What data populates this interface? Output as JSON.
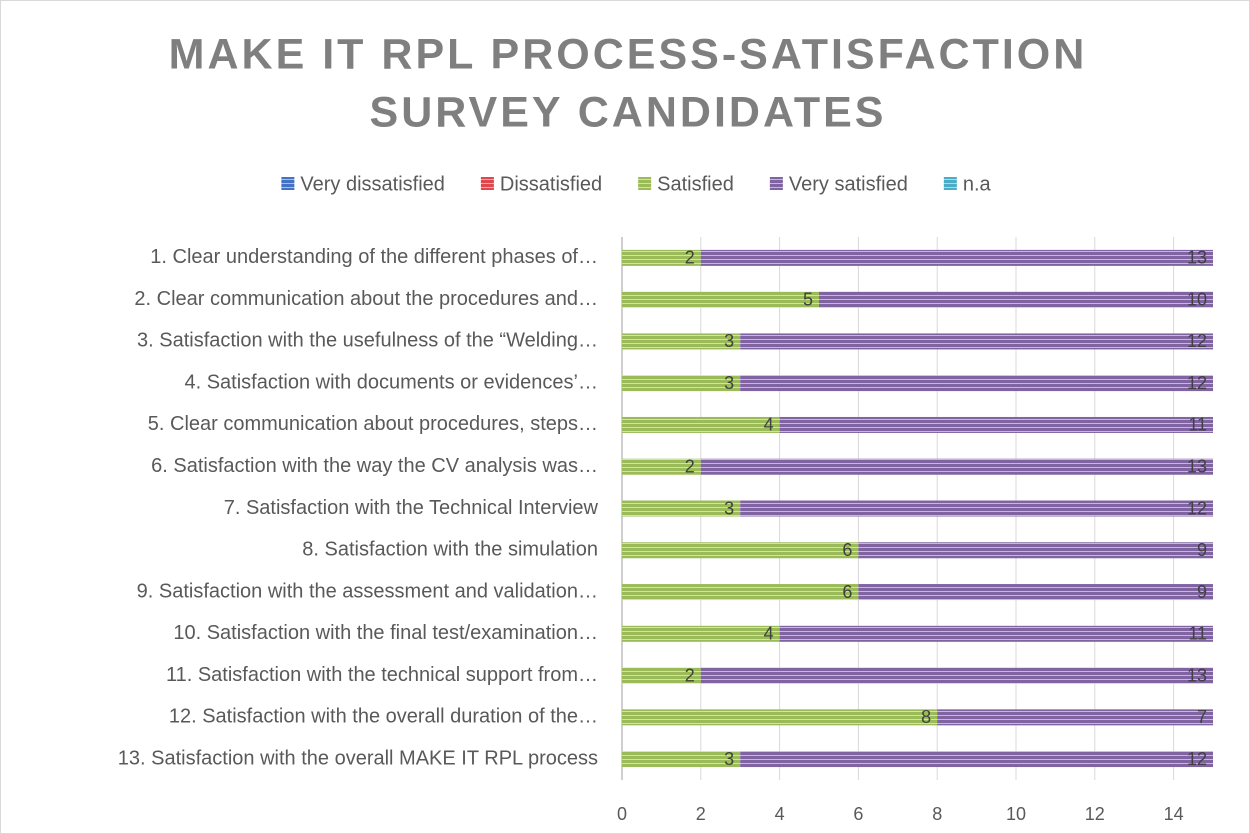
{
  "chart_data": {
    "type": "stacked_bar_horizontal",
    "title": [
      "MAKE IT RPL PROCESS-SATISFACTION",
      "SURVEY CANDIDATES"
    ],
    "categories": [
      "1. Clear understanding of the different phases of…",
      "2. Clear communication about the procedures and…",
      "3. Satisfaction with the usefulness of the “Welding…",
      "4. Satisfaction with documents or evidences’…",
      "5. Clear communication about procedures, steps…",
      "6. Satisfaction with the way the CV analysis was…",
      "7. Satisfaction with the Technical Interview",
      "8. Satisfaction with the simulation",
      "9. Satisfaction with the assessment and validation…",
      "10. Satisfaction with the final test/examination…",
      "11. Satisfaction with the technical support from…",
      "12. Satisfaction with the overall duration of the…",
      "13. Satisfaction with the overall MAKE IT RPL process"
    ],
    "series": [
      {
        "name": "Very dissatisfied",
        "color": "#4472c4",
        "values": [
          0,
          0,
          0,
          0,
          0,
          0,
          0,
          0,
          0,
          0,
          0,
          0,
          0
        ]
      },
      {
        "name": "Dissatisfied",
        "color": "#e0474c",
        "values": [
          0,
          0,
          0,
          0,
          0,
          0,
          0,
          0,
          0,
          0,
          0,
          0,
          0
        ]
      },
      {
        "name": "Satisfied",
        "color": "#9bbb59",
        "values": [
          2,
          5,
          3,
          3,
          4,
          2,
          3,
          6,
          6,
          4,
          2,
          8,
          3
        ]
      },
      {
        "name": "Very satisfied",
        "color": "#8064a2",
        "values": [
          13,
          10,
          12,
          12,
          11,
          13,
          12,
          9,
          9,
          11,
          13,
          7,
          12
        ]
      },
      {
        "name": "n.a",
        "color": "#4bacc6",
        "values": [
          0,
          0,
          0,
          0,
          0,
          0,
          0,
          0,
          0,
          0,
          0,
          0,
          0
        ]
      }
    ],
    "xlim": [
      0,
      15
    ],
    "xticks": [
      0,
      2,
      4,
      6,
      8,
      10,
      12,
      14
    ],
    "grid": true,
    "legend": "top"
  }
}
